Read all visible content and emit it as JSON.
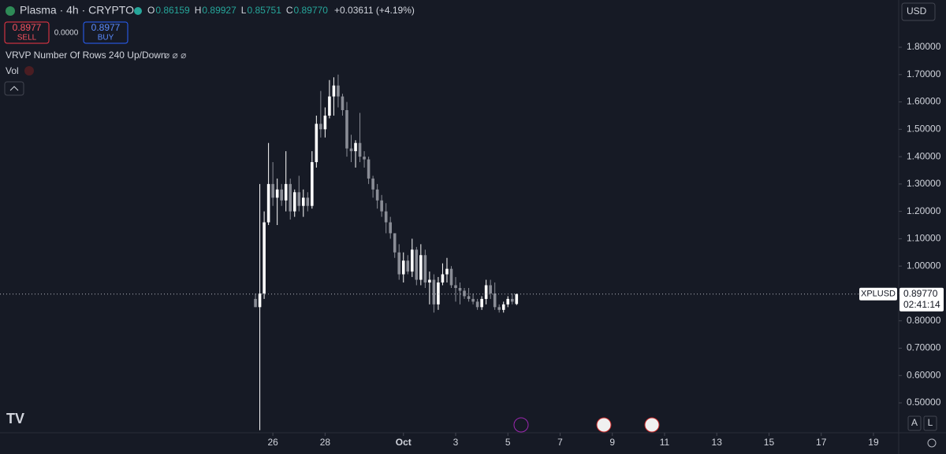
{
  "header": {
    "symbol": "Plasma · 4h · CRYPTO",
    "ohlc": [
      {
        "key": "O",
        "text": "0.86159"
      },
      {
        "key": "H",
        "text": "0.89927"
      },
      {
        "key": "L",
        "text": "0.85751"
      },
      {
        "key": "C",
        "text": "0.89770"
      }
    ],
    "change": "+0.03611 (+4.19%)",
    "sell_price": "0.8977",
    "sell_label": "SELL",
    "spread": "0.0000",
    "buy_price": "0.8977",
    "buy_label": "BUY",
    "indicator": "VRVP Number Of Rows 240 Up/Down",
    "indicator_icons": "⌀ ⌀ ⌀",
    "volume": "Vol",
    "currency": "USD",
    "scale_auto": "A",
    "scale_log": "L"
  },
  "chart_data": {
    "type": "candlestick",
    "up_color": "#ffffff",
    "down_color": "#8a8d96",
    "categories": [
      null,
      null,
      null,
      null,
      null,
      null,
      null,
      null,
      null,
      null,
      null,
      null,
      null,
      null,
      null,
      null,
      null,
      null,
      null,
      null,
      null,
      null,
      null,
      null,
      null,
      null,
      null,
      null,
      null,
      null,
      null,
      null,
      null,
      null,
      null,
      null,
      null,
      null,
      null,
      null,
      null,
      null,
      null,
      null,
      null,
      null,
      null,
      null,
      null,
      null,
      null,
      null,
      null,
      null,
      null,
      null,
      null,
      null,
      null,
      null,
      null
    ],
    "open": [
      0.88,
      0.85,
      0.9,
      1.16,
      1.3,
      1.25,
      1.28,
      1.24,
      1.3,
      1.2,
      1.27,
      1.22,
      1.25,
      1.22,
      1.38,
      1.52,
      1.5,
      1.55,
      1.62,
      1.66,
      1.62,
      1.57,
      1.43,
      1.42,
      1.45,
      1.4,
      1.39,
      1.32,
      1.28,
      1.24,
      1.2,
      1.16,
      1.12,
      1.05,
      0.97,
      1.02,
      0.98,
      1.06,
      0.95,
      1.04,
      0.94,
      0.95,
      0.86,
      0.94,
      0.97,
      0.99,
      0.93,
      0.92,
      0.91,
      0.89,
      0.88,
      0.87,
      0.85,
      0.88,
      0.93,
      0.9,
      0.85,
      0.84,
      0.86,
      0.88,
      0.86159
    ],
    "high": [
      0.9,
      1.3,
      1.2,
      1.45,
      1.38,
      1.32,
      1.3,
      1.42,
      1.32,
      1.28,
      1.33,
      1.28,
      1.27,
      1.42,
      1.55,
      1.64,
      1.58,
      1.68,
      1.69,
      1.7,
      1.63,
      1.6,
      1.48,
      1.46,
      1.56,
      1.42,
      1.4,
      1.33,
      1.3,
      1.26,
      1.23,
      1.18,
      1.12,
      1.08,
      1.05,
      1.04,
      1.1,
      1.07,
      1.08,
      1.06,
      0.98,
      0.97,
      0.96,
      1.01,
      1.03,
      1.0,
      0.96,
      0.94,
      0.92,
      0.92,
      0.9,
      0.88,
      0.89,
      0.95,
      0.95,
      0.94,
      0.86,
      0.87,
      0.89,
      0.9,
      0.89927
    ],
    "low": [
      0.85,
      0.4,
      0.88,
      1.15,
      1.22,
      1.15,
      1.22,
      1.2,
      1.17,
      1.18,
      1.2,
      1.18,
      1.2,
      1.21,
      1.36,
      1.47,
      1.47,
      1.54,
      1.55,
      1.58,
      1.55,
      1.4,
      1.38,
      1.36,
      1.38,
      1.36,
      1.3,
      1.25,
      1.21,
      1.18,
      1.12,
      1.1,
      1.03,
      0.95,
      0.94,
      0.97,
      0.96,
      0.93,
      0.93,
      0.92,
      0.86,
      0.83,
      0.84,
      0.93,
      0.94,
      0.92,
      0.87,
      0.86,
      0.88,
      0.87,
      0.86,
      0.84,
      0.84,
      0.86,
      0.88,
      0.84,
      0.83,
      0.83,
      0.85,
      0.86,
      0.85751
    ],
    "close": [
      0.85,
      0.9,
      1.16,
      1.3,
      1.25,
      1.28,
      1.24,
      1.3,
      1.2,
      1.27,
      1.22,
      1.25,
      1.22,
      1.38,
      1.52,
      1.5,
      1.55,
      1.62,
      1.66,
      1.62,
      1.57,
      1.43,
      1.42,
      1.45,
      1.4,
      1.39,
      1.32,
      1.28,
      1.24,
      1.2,
      1.16,
      1.12,
      1.05,
      0.97,
      1.02,
      0.98,
      1.06,
      0.95,
      1.04,
      0.94,
      0.95,
      0.86,
      0.94,
      0.97,
      0.99,
      0.93,
      0.92,
      0.91,
      0.89,
      0.88,
      0.87,
      0.85,
      0.88,
      0.93,
      0.9,
      0.85,
      0.84,
      0.86,
      0.88,
      0.87,
      0.8977
    ],
    "ylim": [
      0.3908,
      1.9726
    ],
    "yticks": [
      {
        "value": 1.8,
        "label": "1.80000"
      },
      {
        "value": 1.7,
        "label": "1.70000"
      },
      {
        "value": 1.6,
        "label": "1.60000"
      },
      {
        "value": 1.5,
        "label": "1.50000"
      },
      {
        "value": 1.4,
        "label": "1.40000"
      },
      {
        "value": 1.3,
        "label": "1.30000"
      },
      {
        "value": 1.2,
        "label": "1.20000"
      },
      {
        "value": 1.1,
        "label": "1.10000"
      },
      {
        "value": 1.0,
        "label": "1.00000"
      },
      {
        "value": 0.9,
        "label": "0.90000"
      },
      {
        "value": 0.8,
        "label": "0.80000"
      },
      {
        "value": 0.7,
        "label": "0.70000"
      },
      {
        "value": 0.6,
        "label": "0.60000"
      },
      {
        "value": 0.5,
        "label": "0.50000"
      }
    ],
    "xlim": [
      -58.7,
      147.8
    ],
    "xticks": [
      {
        "value": 4,
        "label": "26"
      },
      {
        "value": 16,
        "label": "28"
      },
      {
        "value": 34,
        "label": "Oct"
      },
      {
        "value": 46,
        "label": "3"
      },
      {
        "value": 58,
        "label": "5"
      },
      {
        "value": 70,
        "label": "7"
      },
      {
        "value": 82,
        "label": "9"
      },
      {
        "value": 94,
        "label": "11"
      },
      {
        "value": 106,
        "label": "13"
      },
      {
        "value": 118,
        "label": "15"
      },
      {
        "value": 130,
        "label": "17"
      },
      {
        "value": 142,
        "label": "19"
      }
    ],
    "price_line": {
      "value": 0.8977,
      "label": "0.89770",
      "symbol": "XPLUSD",
      "countdown": "02:41:14"
    }
  }
}
